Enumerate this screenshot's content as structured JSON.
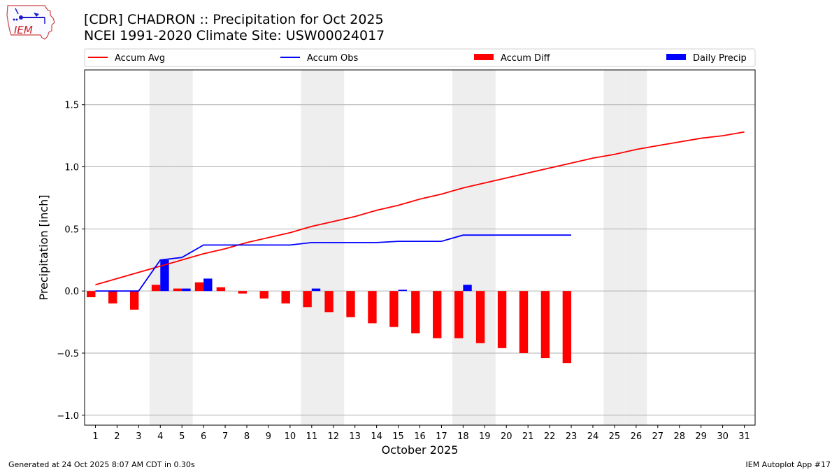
{
  "header": {
    "title_line1": "[CDR] CHADRON :: Precipitation for Oct 2025",
    "title_line2": "NCEI 1991-2020 Climate Site: USW00024017",
    "logo_text": "IEM"
  },
  "footer": {
    "left": "Generated at 24 Oct 2025 8:07 AM CDT in 0.30s",
    "right": "IEM Autoplot App #17"
  },
  "colors": {
    "avg": "#ff0000",
    "obs": "#0000ff",
    "diff": "#ff0000",
    "daily": "#0000ff",
    "weekend": "#eeeeee",
    "grid": "#b0b0b0",
    "logo": "#1a1acc",
    "logo_text": "#cc2222"
  },
  "chart_data": {
    "type": "bar",
    "title": "[CDR] CHADRON :: Precipitation for Oct 2025",
    "subtitle": "NCEI 1991-2020 Climate Site: USW00024017",
    "xlabel": "October 2025",
    "ylabel": "Precipitation [inch]",
    "ylim": [
      -1.08,
      1.78
    ],
    "yticks": [
      -1.0,
      -0.5,
      0.0,
      0.5,
      1.0,
      1.5
    ],
    "ytick_labels": [
      "−1.0",
      "−0.5",
      "0.0",
      "0.5",
      "1.0",
      "1.5"
    ],
    "xlim": [
      0.5,
      31.5
    ],
    "grid": "horizontal",
    "legend_position": "top",
    "weekend_days": [
      4,
      5,
      11,
      12,
      18,
      19,
      25,
      26
    ],
    "days": [
      1,
      2,
      3,
      4,
      5,
      6,
      7,
      8,
      9,
      10,
      11,
      12,
      13,
      14,
      15,
      16,
      17,
      18,
      19,
      20,
      21,
      22,
      23,
      24,
      25,
      26,
      27,
      28,
      29,
      30,
      31
    ],
    "series": [
      {
        "name": "Accum Avg",
        "type": "line",
        "color": "#ff0000",
        "values": [
          0.05,
          0.1,
          0.15,
          0.2,
          0.25,
          0.3,
          0.34,
          0.39,
          0.43,
          0.47,
          0.52,
          0.56,
          0.6,
          0.65,
          0.69,
          0.74,
          0.78,
          0.83,
          0.87,
          0.91,
          0.95,
          0.99,
          1.03,
          1.07,
          1.1,
          1.14,
          1.17,
          1.2,
          1.23,
          1.25,
          1.28
        ]
      },
      {
        "name": "Accum Obs",
        "type": "line",
        "color": "#0000ff",
        "values": [
          0.0,
          0.0,
          0.0,
          0.25,
          0.27,
          0.37,
          0.37,
          0.37,
          0.37,
          0.37,
          0.39,
          0.39,
          0.39,
          0.39,
          0.4,
          0.4,
          0.4,
          0.45,
          0.45,
          0.45,
          0.45,
          0.45,
          0.45
        ]
      },
      {
        "name": "Accum Diff",
        "type": "bar",
        "color": "#ff0000",
        "values": [
          -0.05,
          -0.1,
          -0.15,
          0.05,
          0.02,
          0.07,
          0.03,
          -0.02,
          -0.06,
          -0.1,
          -0.13,
          -0.17,
          -0.21,
          -0.26,
          -0.29,
          -0.34,
          -0.38,
          -0.38,
          -0.42,
          -0.46,
          -0.5,
          -0.54,
          -0.58
        ]
      },
      {
        "name": "Daily Precip",
        "type": "bar",
        "color": "#0000ff",
        "values": [
          0,
          0,
          0,
          0.25,
          0.02,
          0.1,
          0,
          0,
          0,
          0,
          0.02,
          0,
          0,
          0,
          0.01,
          0,
          0,
          0.05,
          0,
          0,
          0,
          0,
          0
        ]
      }
    ]
  }
}
